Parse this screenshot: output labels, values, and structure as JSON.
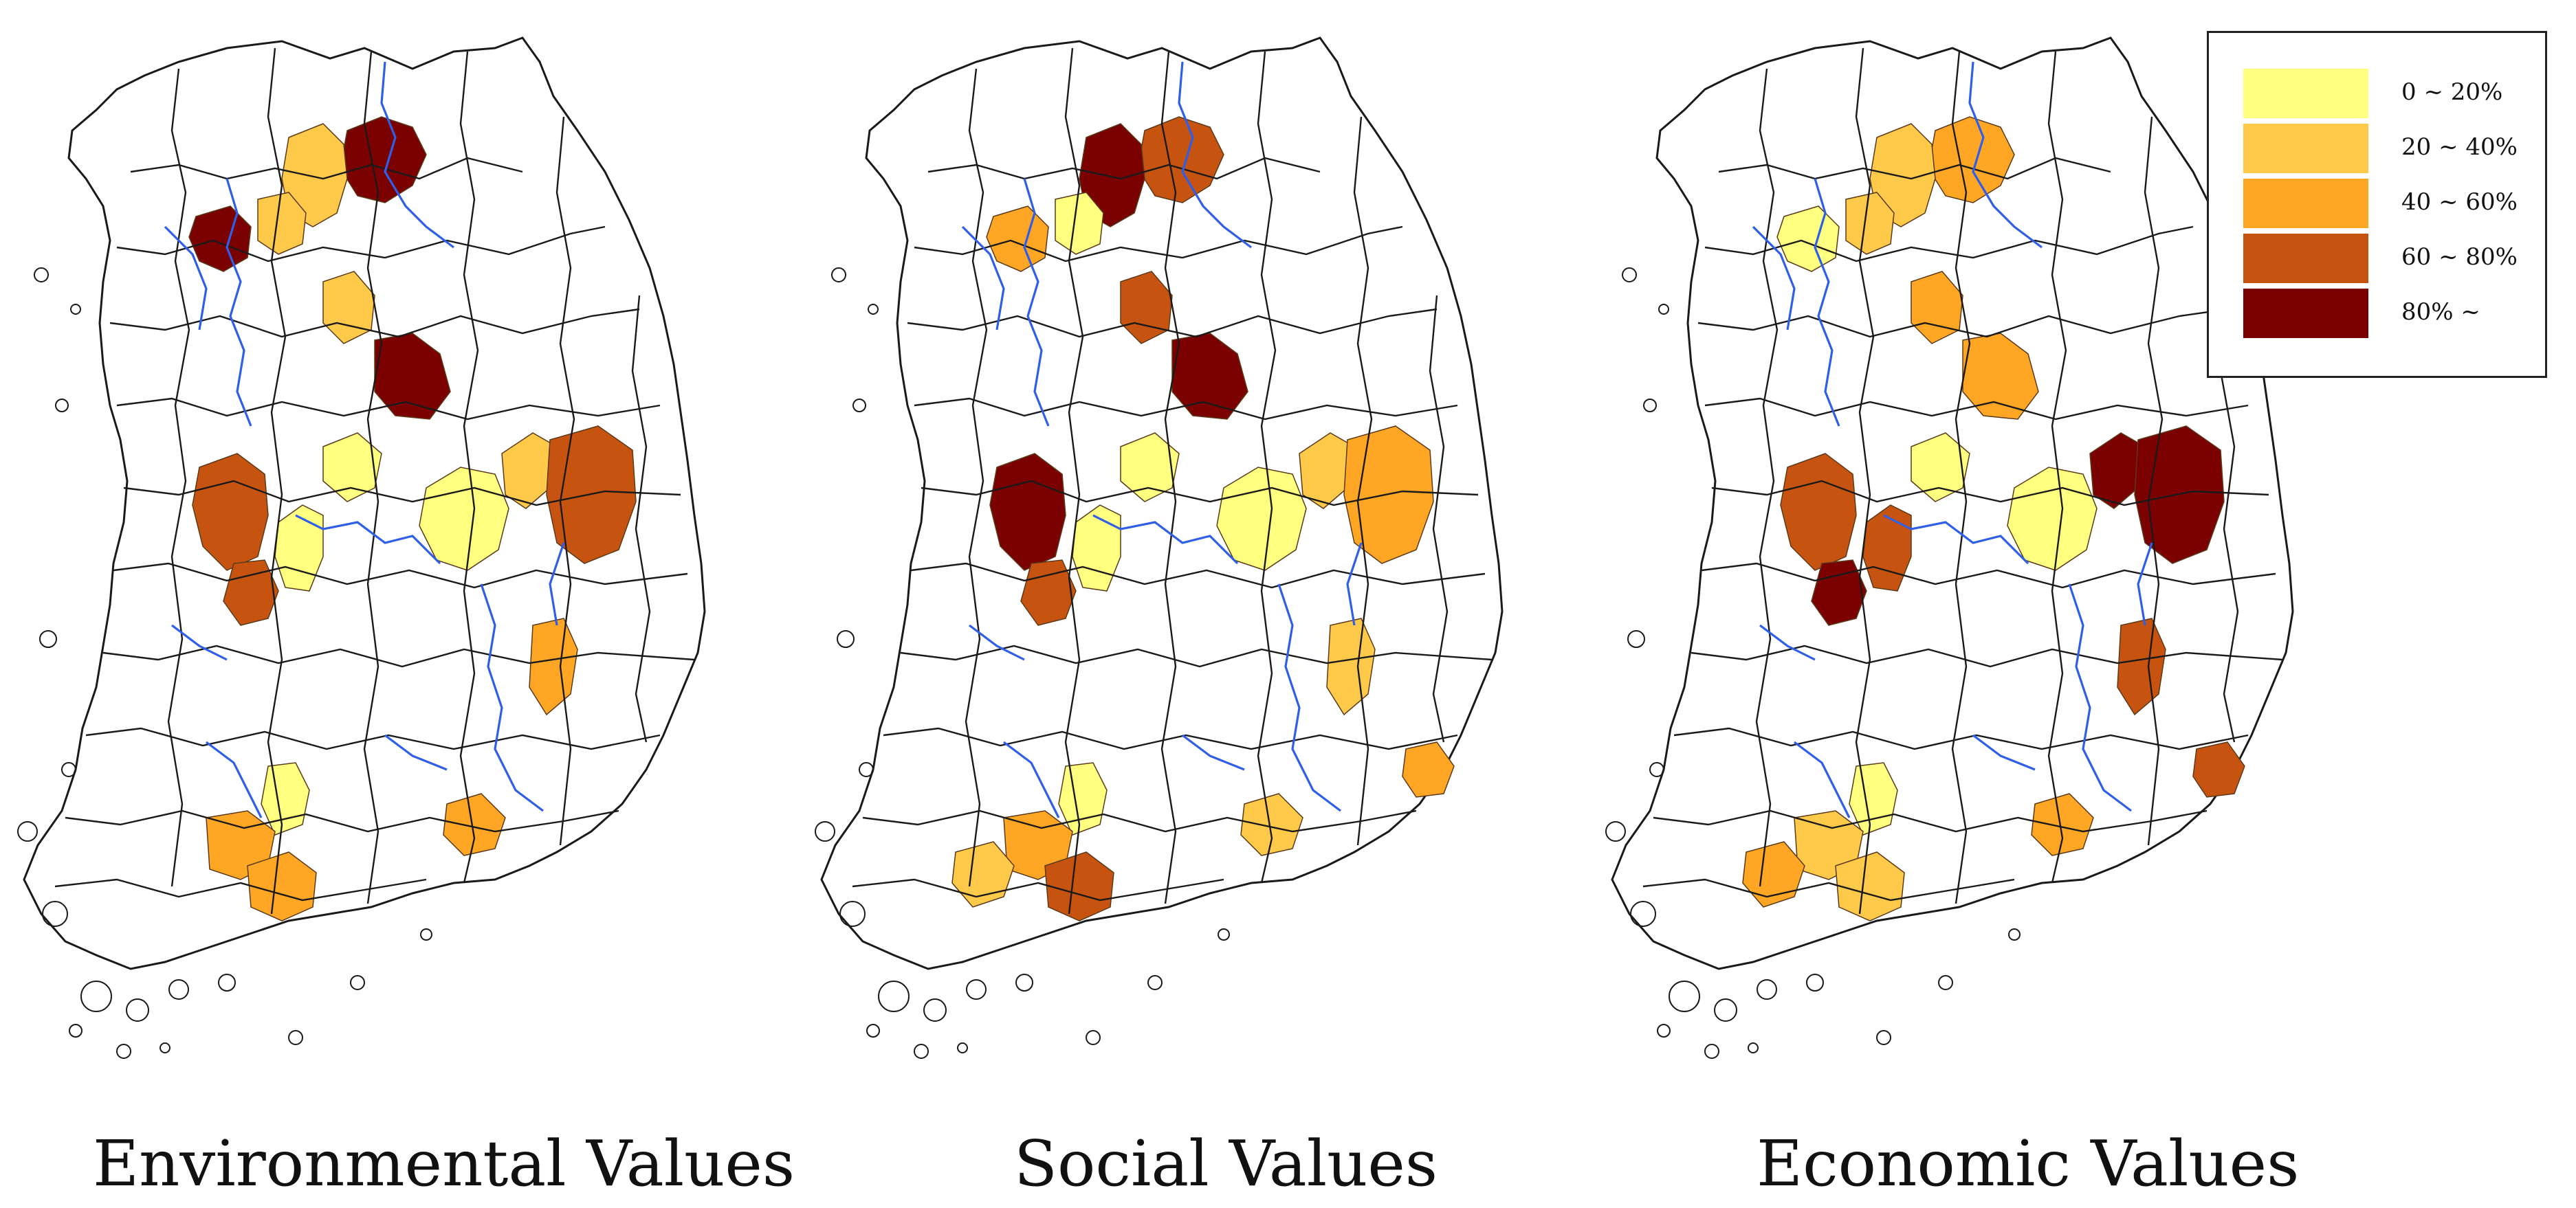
{
  "panels": [
    {
      "caption": "Environmental Values",
      "regions": [
        {
          "shape": "r0",
          "level": 4
        },
        {
          "shape": "r1",
          "level": 1
        },
        {
          "shape": "r2",
          "level": 4
        },
        {
          "shape": "r3",
          "level": 1
        },
        {
          "shape": "r4",
          "level": 1
        },
        {
          "shape": "r5",
          "level": 4
        },
        {
          "shape": "r6",
          "level": 0
        },
        {
          "shape": "r7",
          "level": 3
        },
        {
          "shape": "r8",
          "level": 3
        },
        {
          "shape": "r9",
          "level": 0
        },
        {
          "shape": "r10",
          "level": 1
        },
        {
          "shape": "r11",
          "level": 3
        },
        {
          "shape": "r12",
          "level": 0
        },
        {
          "shape": "r13",
          "level": 2
        },
        {
          "shape": "r14",
          "level": 0
        },
        {
          "shape": "r15",
          "level": 2
        },
        {
          "shape": "r16",
          "level": 2
        },
        {
          "shape": "r17",
          "level": 2
        }
      ]
    },
    {
      "caption": "Social Values",
      "regions": [
        {
          "shape": "r0",
          "level": 3
        },
        {
          "shape": "r1",
          "level": 4
        },
        {
          "shape": "r2",
          "level": 2
        },
        {
          "shape": "r3",
          "level": 0
        },
        {
          "shape": "r4",
          "level": 3
        },
        {
          "shape": "r5",
          "level": 4
        },
        {
          "shape": "r6",
          "level": 0
        },
        {
          "shape": "r7",
          "level": 4
        },
        {
          "shape": "r8",
          "level": 3
        },
        {
          "shape": "r9",
          "level": 0
        },
        {
          "shape": "r10",
          "level": 1
        },
        {
          "shape": "r11",
          "level": 2
        },
        {
          "shape": "r12",
          "level": 0
        },
        {
          "shape": "r13",
          "level": 1
        },
        {
          "shape": "r14",
          "level": 0
        },
        {
          "shape": "r15",
          "level": 2
        },
        {
          "shape": "r16",
          "level": 3
        },
        {
          "shape": "r17",
          "level": 1
        },
        {
          "shape": "r18",
          "level": 1
        },
        {
          "shape": "r19",
          "level": 2
        }
      ]
    },
    {
      "caption": "Economic Values",
      "regions": [
        {
          "shape": "r0",
          "level": 2
        },
        {
          "shape": "r1",
          "level": 1
        },
        {
          "shape": "r2",
          "level": 0
        },
        {
          "shape": "r3",
          "level": 1
        },
        {
          "shape": "r4",
          "level": 2
        },
        {
          "shape": "r5",
          "level": 2
        },
        {
          "shape": "r6",
          "level": 0
        },
        {
          "shape": "r7",
          "level": 3
        },
        {
          "shape": "r8",
          "level": 4
        },
        {
          "shape": "r9",
          "level": 0
        },
        {
          "shape": "r10",
          "level": 4
        },
        {
          "shape": "r11",
          "level": 4
        },
        {
          "shape": "r12",
          "level": 3
        },
        {
          "shape": "r13",
          "level": 3
        },
        {
          "shape": "r14",
          "level": 0
        },
        {
          "shape": "r15",
          "level": 1
        },
        {
          "shape": "r16",
          "level": 1
        },
        {
          "shape": "r17",
          "level": 2
        },
        {
          "shape": "r18",
          "level": 2
        },
        {
          "shape": "r19",
          "level": 3
        }
      ]
    }
  ],
  "legend": {
    "items": [
      {
        "label": "0 ~ 20%",
        "color": "#ffff80"
      },
      {
        "label": "20 ~ 40%",
        "color": "#ffc94a"
      },
      {
        "label": "40 ~ 60%",
        "color": "#ffa724"
      },
      {
        "label": "60 ~ 80%",
        "color": "#c65410"
      },
      {
        "label": "80% ~",
        "color": "#7b0000"
      }
    ]
  },
  "colors": {
    "boundary": "#1a1a1a",
    "river": "#2f5fe8",
    "background": "#ffffff"
  }
}
